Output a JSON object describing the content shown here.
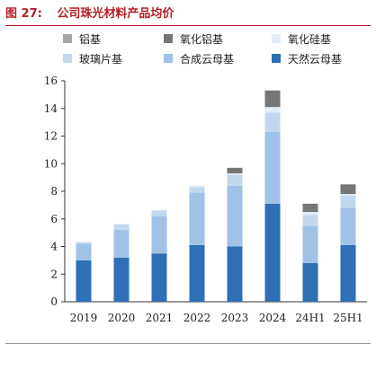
{
  "figure": {
    "label": "图 27:",
    "title": "公司珠光材料产品均价"
  },
  "chart_data": {
    "type": "bar",
    "stacked": true,
    "title": "公司珠光材料产品均价",
    "xlabel": "",
    "ylabel": "",
    "ylim": [
      0,
      16
    ],
    "yticks": [
      0,
      2,
      4,
      6,
      8,
      10,
      12,
      14,
      16
    ],
    "grid": false,
    "legend_position": "top",
    "categories": [
      "2019",
      "2020",
      "2021",
      "2022",
      "2023",
      "2024",
      "24H1",
      "25H1"
    ],
    "series": [
      {
        "name": "天然云母基",
        "color": "#2e6fb5",
        "values": [
          3.0,
          3.2,
          3.5,
          4.1,
          4.0,
          7.1,
          2.8,
          4.1
        ]
      },
      {
        "name": "合成云母基",
        "color": "#9fc2e6",
        "values": [
          1.2,
          2.0,
          2.7,
          3.8,
          4.4,
          5.2,
          2.7,
          2.7
        ]
      },
      {
        "name": "玻璃片基",
        "color": "#c3d8ef",
        "values": [
          0.1,
          0.4,
          0.4,
          0.4,
          0.8,
          1.4,
          0.8,
          0.9
        ]
      },
      {
        "name": "氧化硅基",
        "color": "#e3ecf6",
        "values": [
          0.05,
          0.05,
          0.05,
          0.1,
          0.1,
          0.4,
          0.2,
          0.1
        ]
      },
      {
        "name": "氧化铝基",
        "color": "#767676",
        "values": [
          0.0,
          0.0,
          0.0,
          0.0,
          0.4,
          1.2,
          0.6,
          0.7
        ]
      },
      {
        "name": "铝基",
        "color": "#a6a6a6",
        "values": [
          0.0,
          0.0,
          0.0,
          0.0,
          0.0,
          0.0,
          0.0,
          0.0
        ]
      }
    ],
    "legend_order": [
      "铝基",
      "氧化铝基",
      "氧化硅基",
      "玻璃片基",
      "合成云母基",
      "天然云母基"
    ]
  }
}
